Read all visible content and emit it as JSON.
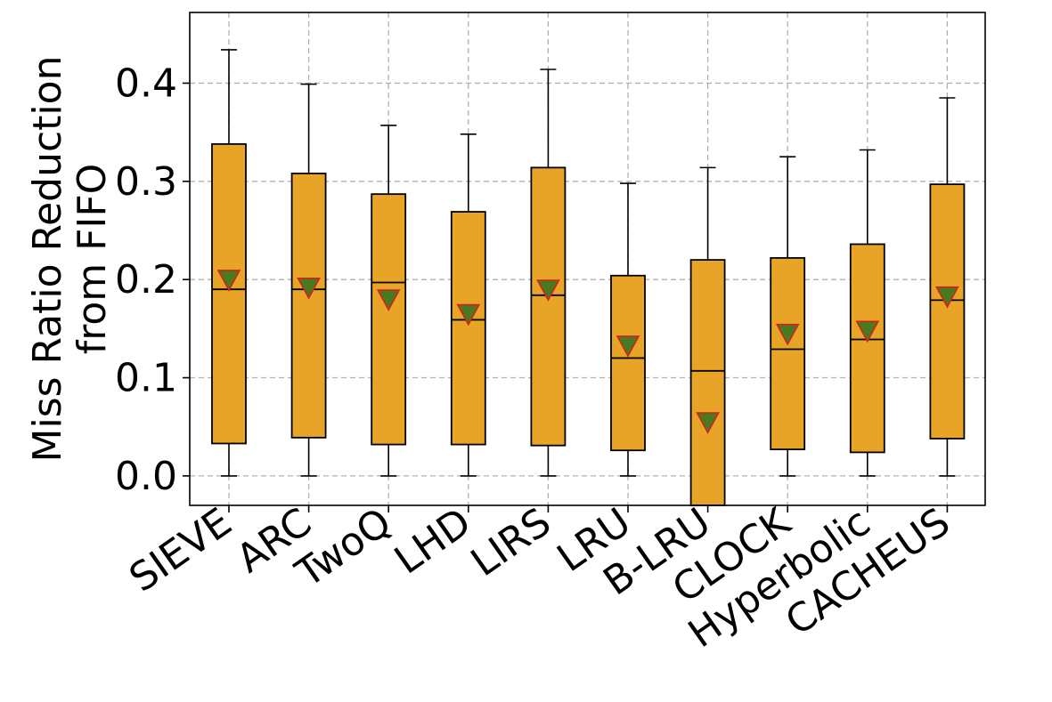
{
  "chart_data": {
    "type": "box",
    "ylabel_lines": [
      "Miss Ratio Reduction",
      "from FIFO"
    ],
    "xlabel": "",
    "ylim": [
      -0.03,
      0.472
    ],
    "yticks": [
      0.0,
      0.1,
      0.2,
      0.3,
      0.4
    ],
    "ytick_labels": [
      "0.0",
      "0.1",
      "0.2",
      "0.3",
      "0.4"
    ],
    "grid": true,
    "colors": {
      "box_fill": "#e8a427",
      "mean_fill": "#4a7a1e",
      "mean_edge": "#d42020"
    },
    "categories": [
      "SIEVE",
      "ARC",
      "TwoQ",
      "LHD",
      "LIRS",
      "LRU",
      "B-LRU",
      "CLOCK",
      "Hyperbolic",
      "CACHEUS"
    ],
    "boxes": [
      {
        "q1": 0.033,
        "median": 0.19,
        "q3": 0.338,
        "whisker_low": 0.0,
        "whisker_high": 0.434,
        "mean": 0.2
      },
      {
        "q1": 0.039,
        "median": 0.19,
        "q3": 0.308,
        "whisker_low": 0.0,
        "whisker_high": 0.399,
        "mean": 0.192
      },
      {
        "q1": 0.032,
        "median": 0.197,
        "q3": 0.287,
        "whisker_low": 0.0,
        "whisker_high": 0.357,
        "mean": 0.18
      },
      {
        "q1": 0.032,
        "median": 0.159,
        "q3": 0.269,
        "whisker_low": 0.0,
        "whisker_high": 0.348,
        "mean": 0.165
      },
      {
        "q1": 0.031,
        "median": 0.184,
        "q3": 0.314,
        "whisker_low": 0.0,
        "whisker_high": 0.414,
        "mean": 0.19
      },
      {
        "q1": 0.026,
        "median": 0.12,
        "q3": 0.204,
        "whisker_low": 0.0,
        "whisker_high": 0.298,
        "mean": 0.133
      },
      {
        "q1": -0.03,
        "median": 0.107,
        "q3": 0.22,
        "whisker_low": -0.03,
        "whisker_high": 0.314,
        "mean": 0.055
      },
      {
        "q1": 0.027,
        "median": 0.129,
        "q3": 0.222,
        "whisker_low": 0.0,
        "whisker_high": 0.325,
        "mean": 0.145
      },
      {
        "q1": 0.024,
        "median": 0.139,
        "q3": 0.236,
        "whisker_low": 0.0,
        "whisker_high": 0.332,
        "mean": 0.148
      },
      {
        "q1": 0.038,
        "median": 0.179,
        "q3": 0.297,
        "whisker_low": 0.0,
        "whisker_high": 0.385,
        "mean": 0.183
      }
    ]
  }
}
